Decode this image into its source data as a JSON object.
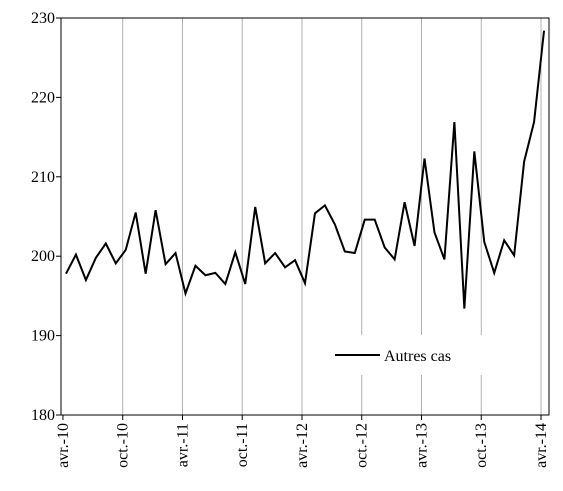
{
  "chart_data": {
    "type": "line",
    "title": "",
    "xlabel": "",
    "ylabel": "",
    "ylim": [
      180,
      230
    ],
    "yticks": [
      180,
      190,
      200,
      210,
      220,
      230
    ],
    "grid": "vertical",
    "legend_position": "bottom-right",
    "x_tick_labels": [
      "avr.-10",
      "oct.-10",
      "avr.-11",
      "oct.-11",
      "avr.-12",
      "oct.-12",
      "avr.-13",
      "oct.-13",
      "avr.-14"
    ],
    "x_start": "avr.-10",
    "x_end": "avr.-14",
    "series": [
      {
        "name": "Autres cas",
        "color": "#000000",
        "values": [
          197.8,
          200.2,
          197.0,
          199.8,
          201.6,
          199.1,
          200.8,
          205.5,
          197.8,
          205.8,
          199.0,
          200.4,
          195.3,
          198.8,
          197.6,
          197.9,
          196.5,
          200.5,
          196.5,
          206.2,
          199.1,
          200.4,
          198.6,
          199.5,
          196.6,
          205.4,
          206.4,
          204.0,
          200.6,
          200.4,
          204.6,
          204.6,
          201.1,
          199.6,
          206.8,
          201.3,
          212.3,
          203.0,
          199.6,
          216.9,
          193.4,
          213.2,
          201.8,
          197.9,
          202.0,
          200.1,
          211.9,
          216.9,
          228.4
        ]
      }
    ]
  }
}
